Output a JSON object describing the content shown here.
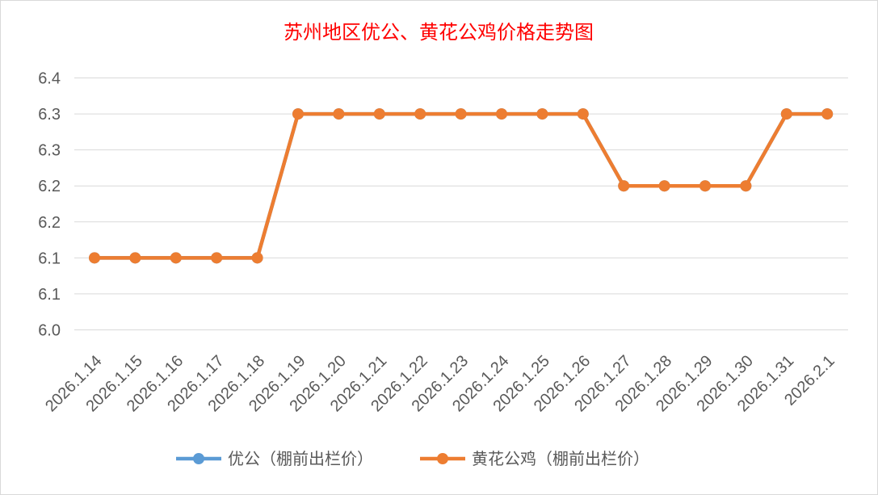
{
  "chart_data": {
    "type": "line",
    "title": "苏州地区优公、黄花公鸡价格走势图",
    "xlabel": "",
    "ylabel": "",
    "categories": [
      "2026.1.14",
      "2026.1.15",
      "2026.1.16",
      "2026.1.17",
      "2026.1.18",
      "2026.1.19",
      "2026.1.20",
      "2026.1.21",
      "2026.1.22",
      "2026.1.23",
      "2026.1.24",
      "2026.1.25",
      "2026.1.26",
      "2026.1.27",
      "2026.1.28",
      "2026.1.29",
      "2026.1.30",
      "2026.1.31",
      "2026.2.1"
    ],
    "y_tick_values": [
      6.0,
      6.05,
      6.1,
      6.15,
      6.2,
      6.25,
      6.3,
      6.35
    ],
    "y_tick_labels": [
      "6.0",
      "6.1",
      "6.1",
      "6.2",
      "6.2",
      "6.3",
      "6.3",
      "6.4"
    ],
    "ylim": [
      6.0,
      6.35
    ],
    "grid": true,
    "legend_position": "bottom",
    "series": [
      {
        "name": "优公（棚前出栏价）",
        "color": "#5b9bd5",
        "values": [
          6.1,
          6.1,
          6.1,
          6.1,
          6.1,
          6.3,
          6.3,
          6.3,
          6.3,
          6.3,
          6.3,
          6.3,
          6.3,
          6.2,
          6.2,
          6.2,
          6.2,
          6.3,
          6.3
        ]
      },
      {
        "name": "黄花公鸡（棚前出栏价）",
        "color": "#ed7d31",
        "values": [
          6.1,
          6.1,
          6.1,
          6.1,
          6.1,
          6.3,
          6.3,
          6.3,
          6.3,
          6.3,
          6.3,
          6.3,
          6.3,
          6.2,
          6.2,
          6.2,
          6.2,
          6.3,
          6.3
        ]
      }
    ]
  }
}
